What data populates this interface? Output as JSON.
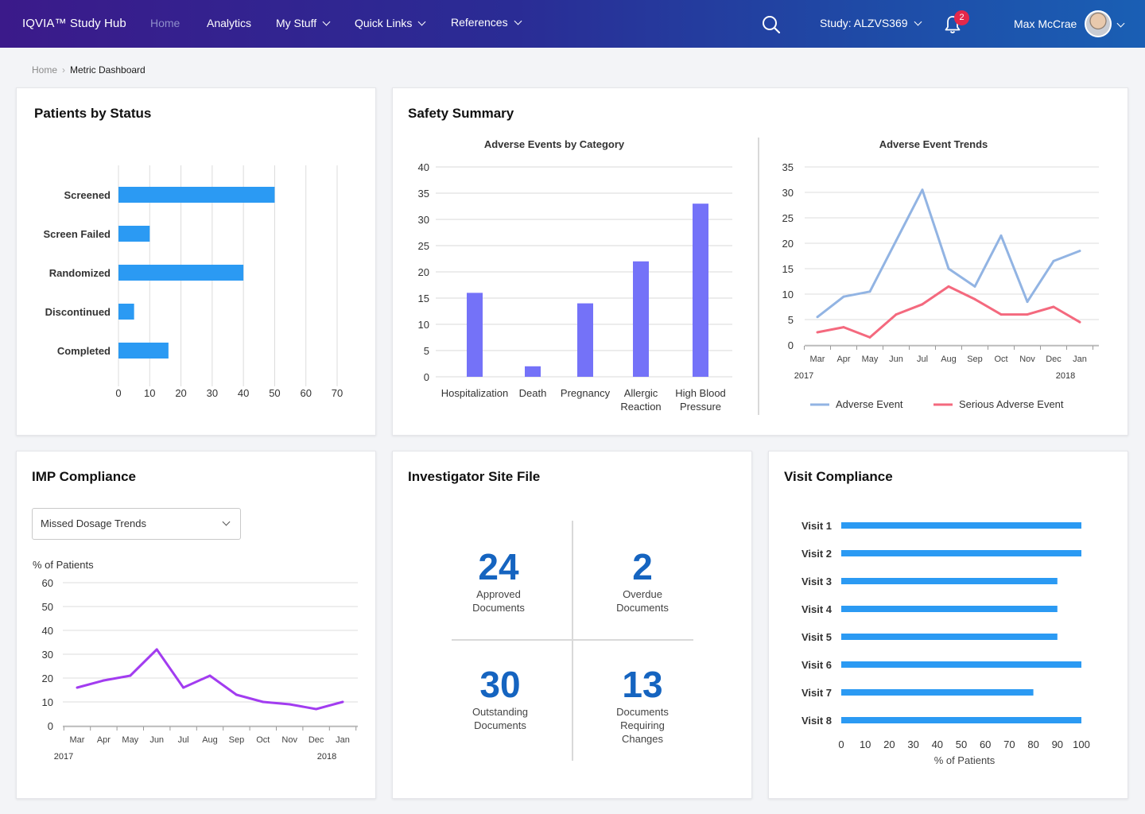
{
  "header": {
    "brand": "IQVIA™ Study Hub",
    "nav": [
      {
        "label": "Home",
        "active": true
      },
      {
        "label": "Analytics"
      },
      {
        "label": "My Stuff",
        "dropdown": true
      },
      {
        "label": "Quick Links",
        "dropdown": true
      },
      {
        "label": "References",
        "dropdown": true
      }
    ],
    "study": "Study: ALZVS369",
    "notification_count": "2",
    "user": "Max McCrae"
  },
  "breadcrumb": {
    "home": "Home",
    "current": "Metric Dashboard"
  },
  "patients": {
    "title": "Patients by Status",
    "chart_data": {
      "type": "bar",
      "orientation": "horizontal",
      "categories": [
        "Screened",
        "Screen Failed",
        "Randomized",
        "Discontinued",
        "Completed"
      ],
      "values": [
        50,
        10,
        40,
        5,
        16
      ],
      "xticks": [
        "0",
        "10",
        "20",
        "30",
        "40",
        "50",
        "60",
        "70"
      ],
      "xlim": [
        0,
        70
      ],
      "color": "#2b9af3"
    }
  },
  "safety": {
    "title": "Safety Summary",
    "by_category": {
      "chart_data": {
        "type": "bar",
        "title": "Adverse Events by Category",
        "categories": [
          [
            "Hospitalization"
          ],
          [
            "Death"
          ],
          [
            "Pregnancy"
          ],
          [
            "Allergic",
            "Reaction"
          ],
          [
            "High Blood",
            "Pressure"
          ]
        ],
        "values": [
          16,
          2,
          14,
          22,
          33
        ],
        "yticks": [
          "0",
          "5",
          "10",
          "15",
          "20",
          "25",
          "30",
          "35",
          "40"
        ],
        "ylim": [
          0,
          40
        ],
        "color": "#7472f8"
      }
    },
    "trends": {
      "chart_data": {
        "type": "line",
        "title": "Adverse Event Trends",
        "x": [
          "Mar",
          "Apr",
          "May",
          "Jun",
          "Jul",
          "Aug",
          "Sep",
          "Oct",
          "Nov",
          "Dec",
          "Jan"
        ],
        "year_labels": [
          "2017",
          "2018"
        ],
        "yticks": [
          "0",
          "5",
          "10",
          "15",
          "20",
          "25",
          "30",
          "35"
        ],
        "ylim": [
          0,
          35
        ],
        "series": [
          {
            "name": "Adverse Event",
            "color": "#92b4e3",
            "values": [
              5.5,
              9.5,
              10.5,
              20.5,
              30.5,
              15,
              11.5,
              21.5,
              8.5,
              16.5,
              18.5
            ]
          },
          {
            "name": "Serious Adverse Event",
            "color": "#f4697e",
            "values": [
              2.5,
              3.5,
              1.5,
              6,
              8,
              11.5,
              9,
              6,
              6,
              7.5,
              4.5
            ]
          }
        ]
      }
    }
  },
  "imp": {
    "title": "IMP Compliance",
    "dropdown_value": "Missed Dosage Trends",
    "chart_data": {
      "type": "line",
      "ylabel": "% of Patients",
      "x": [
        "Mar",
        "Apr",
        "May",
        "Jun",
        "Jul",
        "Aug",
        "Sep",
        "Oct",
        "Nov",
        "Dec",
        "Jan"
      ],
      "year_labels": [
        "2017",
        "2018"
      ],
      "yticks": [
        "0",
        "10",
        "20",
        "30",
        "40",
        "50",
        "60"
      ],
      "ylim": [
        0,
        60
      ],
      "series": [
        {
          "color": "#a23cf0",
          "values": [
            16,
            19,
            21,
            32,
            16,
            21,
            13,
            10,
            9,
            7,
            10
          ]
        }
      ]
    }
  },
  "isf": {
    "title": "Investigator Site File",
    "tiles": [
      {
        "value": "24",
        "label": [
          "Approved",
          "Documents"
        ]
      },
      {
        "value": "2",
        "label": [
          "Overdue",
          "Documents"
        ]
      },
      {
        "value": "30",
        "label": [
          "Outstanding",
          "Documents"
        ]
      },
      {
        "value": "13",
        "label": [
          "Documents",
          "Requiring",
          "Changes"
        ]
      }
    ]
  },
  "visit": {
    "title": "Visit Compliance",
    "chart_data": {
      "type": "bar",
      "orientation": "horizontal",
      "categories": [
        "Visit 1",
        "Visit 2",
        "Visit 3",
        "Visit 4",
        "Visit 5",
        "Visit 6",
        "Visit 7",
        "Visit 8"
      ],
      "values": [
        100,
        100,
        90,
        90,
        90,
        100,
        80,
        100
      ],
      "xticks": [
        "0",
        "10",
        "20",
        "30",
        "40",
        "50",
        "60",
        "70",
        "80",
        "90",
        "100"
      ],
      "xlim": [
        0,
        100
      ],
      "xlabel": "% of Patients",
      "color": "#2b9af3"
    }
  }
}
